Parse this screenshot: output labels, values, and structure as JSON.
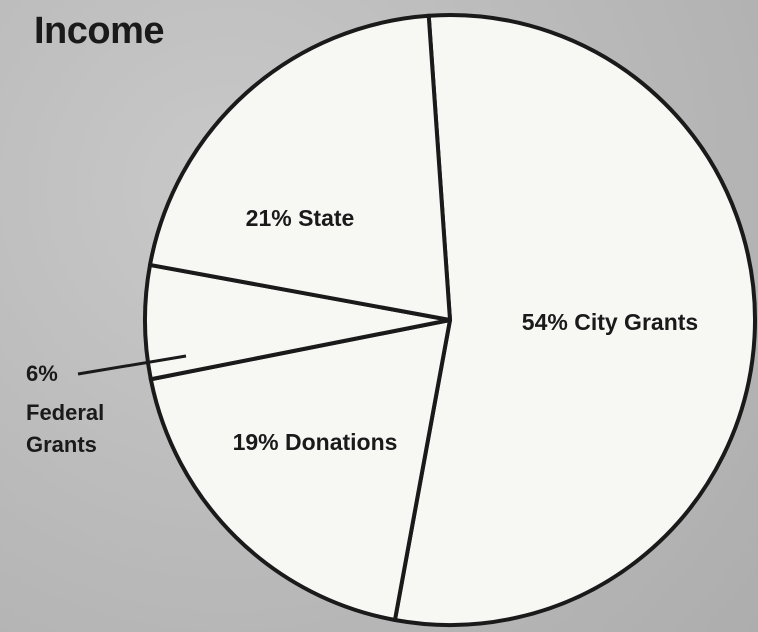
{
  "chart_data": {
    "type": "pie",
    "title": "Income",
    "slices": [
      {
        "label": "City Grants",
        "value": 54,
        "display": "54% City Grants"
      },
      {
        "label": "Donations",
        "value": 19,
        "display": "19% Donations"
      },
      {
        "label": "Federal Grants",
        "value": 6,
        "display_value": "6%",
        "display_lines": [
          "Federal",
          "Grants"
        ]
      },
      {
        "label": "State",
        "value": 21,
        "display": "21% State"
      }
    ]
  }
}
